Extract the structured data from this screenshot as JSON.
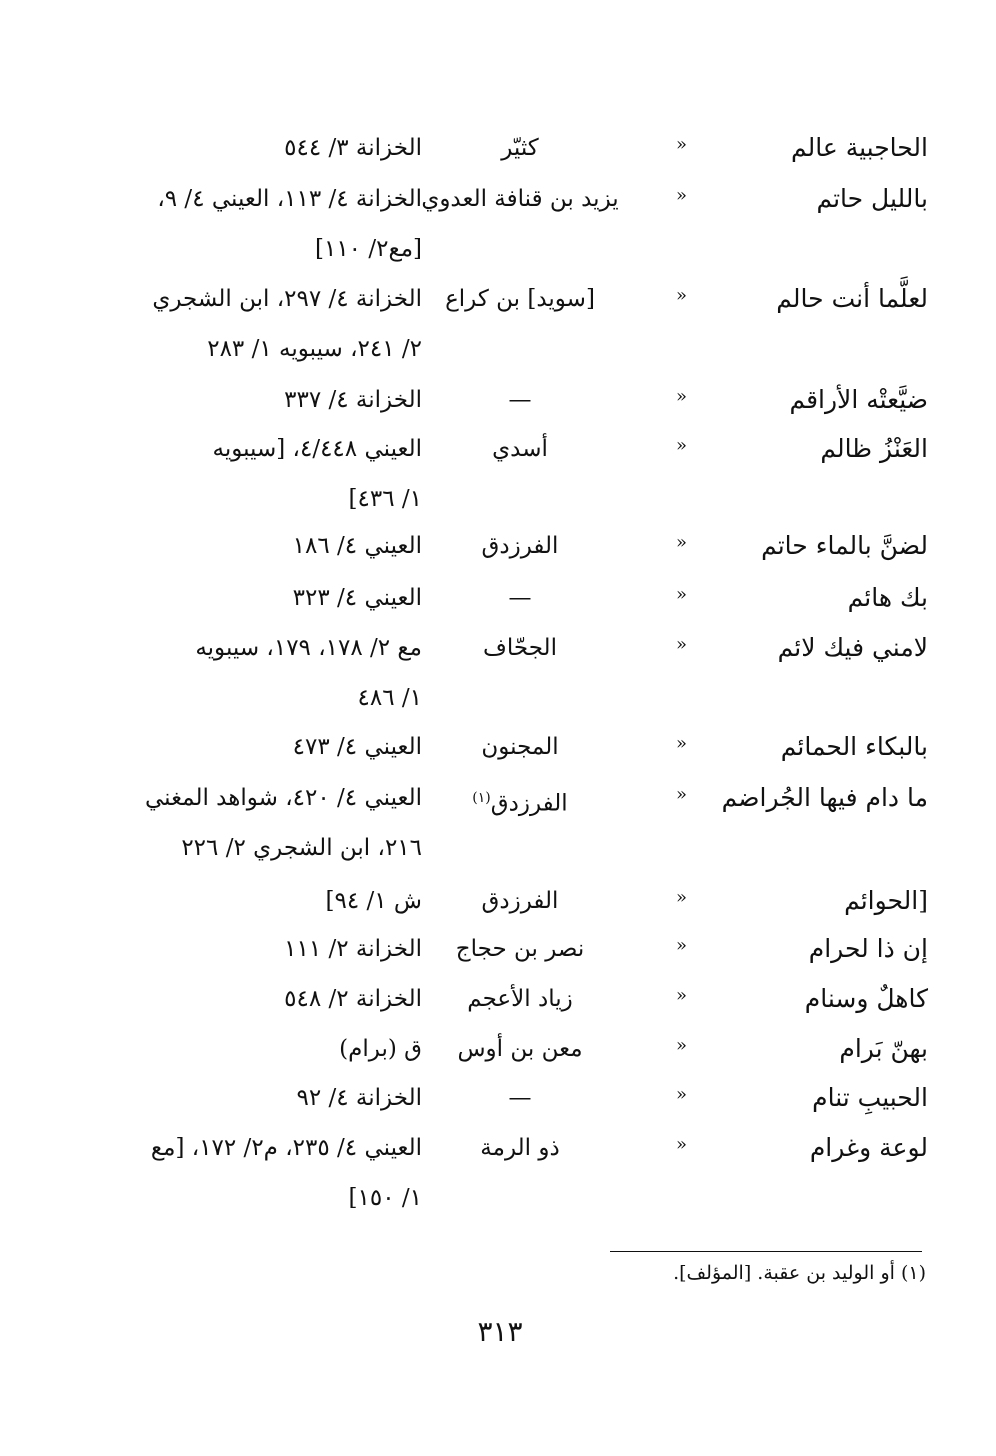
{
  "ditto_mark": "»",
  "entries": [
    {
      "rhyme": "الحاجبية عالم",
      "poet": "كثيّر",
      "source": [
        "الخزانة ٣/ ٥٤٤"
      ]
    },
    {
      "rhyme": "بالليل حاتم",
      "poet": "يزيد بن قنافة العدوي",
      "source": [
        "الخزانة ٤/ ١١٣، العيني ٤/ ٩،",
        "[مع٢/ ١١٠]"
      ]
    },
    {
      "rhyme": "لعلَّما أنت حالم",
      "poet": "[سويد] بن كراع",
      "source": [
        "الخزانة ٤/ ٢٩٧، ابن الشجري",
        "٢/ ٢٤١، سيبويه ١/ ٢٨٣"
      ]
    },
    {
      "rhyme": "ضيَّعتْه الأراقم",
      "poet": "—",
      "source": [
        "الخزانة ٤/ ٣٣٧"
      ]
    },
    {
      "rhyme": "العَنْزُ ظالم",
      "poet": "أسدي",
      "source": [
        "العيني ٤/٤٤٨، [سيبويه",
        "١/ ٤٣٦]"
      ]
    },
    {
      "rhyme": "لضنَّ بالماء حاتم",
      "poet": "الفرزدق",
      "source": [
        "العيني ٤/ ١٨٦"
      ]
    },
    {
      "rhyme": "بك هائم",
      "poet": "—",
      "source": [
        "العيني ٤/ ٣٢٣"
      ]
    },
    {
      "rhyme": "لامني فيك لائم",
      "poet": "الجحّاف",
      "source": [
        "مع ٢/ ١٧٨، ١٧٩، سيبويه",
        "١/ ٤٨٦"
      ]
    },
    {
      "rhyme": "بالبكاء الحمائم",
      "poet": "المجنون",
      "source": [
        "العيني ٤/ ٤٧٣"
      ]
    },
    {
      "rhyme": "ما دام فيها الجُراضم",
      "poet": "الفرزدق",
      "poet_note": "(١)",
      "source": [
        "العيني ٤/ ٤٢٠، شواهد المغني",
        "٢١٦، ابن الشجري ٢/ ٢٢٦"
      ]
    },
    {
      "rhyme": "[الحوائم",
      "poet": "الفرزدق",
      "source": [
        "ش ١/ ٩٤]"
      ]
    },
    {
      "rhyme": "إن ذا لحرام",
      "poet": "نصر بن حجاج",
      "source": [
        "الخزانة ٢/ ١١١"
      ]
    },
    {
      "rhyme": "كاهلٌ وسنام",
      "poet": "زياد الأعجم",
      "source": [
        "الخزانة ٢/ ٥٤٨"
      ]
    },
    {
      "rhyme": "بهنّ بَرام",
      "poet": "معن بن أوس",
      "source": [
        "ق (برام)"
      ]
    },
    {
      "rhyme": "الحبيبِ تنام",
      "poet": "—",
      "source": [
        "الخزانة ٤/ ٩٢"
      ]
    },
    {
      "rhyme": "لوعة وغرام",
      "poet": "ذو الرمة",
      "source": [
        "العيني ٤/ ٢٣٥، م٢/ ١٧٢، [مع",
        "١/ ١٥٠]"
      ]
    }
  ],
  "footnote": "(١) أو الوليد بن عقبة. [المؤلف].",
  "page_number": "٣١٣"
}
